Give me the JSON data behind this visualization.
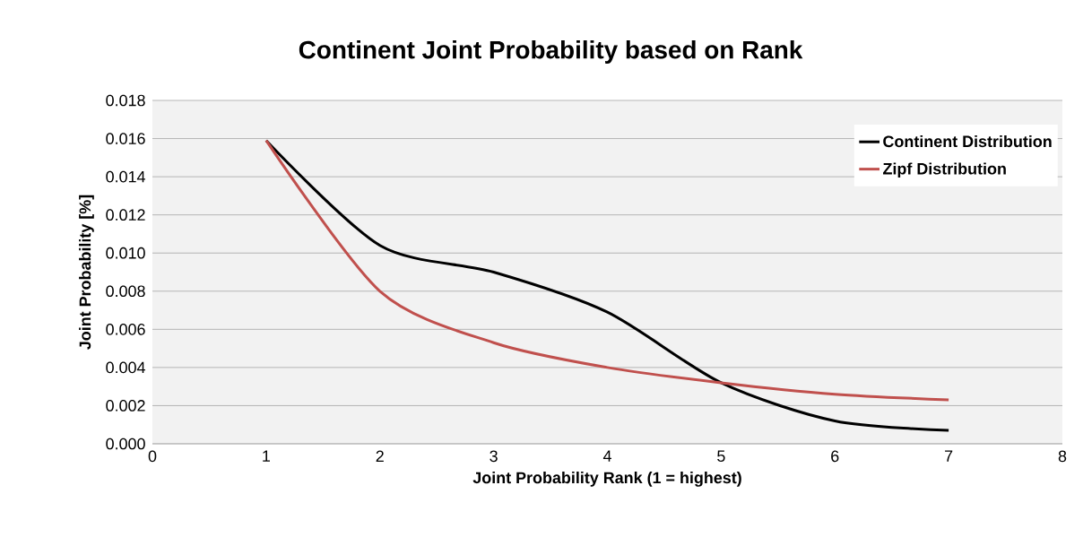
{
  "chart_data": {
    "type": "line",
    "title": "Continent Joint Probability based on Rank",
    "xlabel": "Joint Probability Rank (1 = highest)",
    "ylabel": "Joint Probability [%]",
    "x": [
      1,
      2,
      3,
      4,
      5,
      6,
      7
    ],
    "series": [
      {
        "name": "Continent Distribution",
        "color": "#000000",
        "values": [
          0.0159,
          0.0104,
          0.009,
          0.0069,
          0.0032,
          0.0012,
          0.0007
        ]
      },
      {
        "name": "Zipf Distribution",
        "color": "#c0504d",
        "values": [
          0.0159,
          0.008,
          0.0053,
          0.004,
          0.0032,
          0.0026,
          0.0023
        ]
      }
    ],
    "xlim": [
      0,
      8
    ],
    "xticks": [
      0,
      1,
      2,
      3,
      4,
      5,
      6,
      7,
      8
    ],
    "ylim": [
      0,
      0.018
    ],
    "yticks": [
      {
        "value": 0,
        "label": "0.000"
      },
      {
        "value": 0.002,
        "label": "0.002"
      },
      {
        "value": 0.004,
        "label": "0.004"
      },
      {
        "value": 0.006,
        "label": "0.006"
      },
      {
        "value": 0.008,
        "label": "0.008"
      },
      {
        "value": 0.01,
        "label": "0.010"
      },
      {
        "value": 0.012,
        "label": "0.012"
      },
      {
        "value": 0.014,
        "label": "0.014"
      },
      {
        "value": 0.016,
        "label": "0.016"
      },
      {
        "value": 0.018,
        "label": "0.018"
      }
    ],
    "grid": "y",
    "legend": "top right",
    "marker": "none",
    "line_style": "solid"
  }
}
